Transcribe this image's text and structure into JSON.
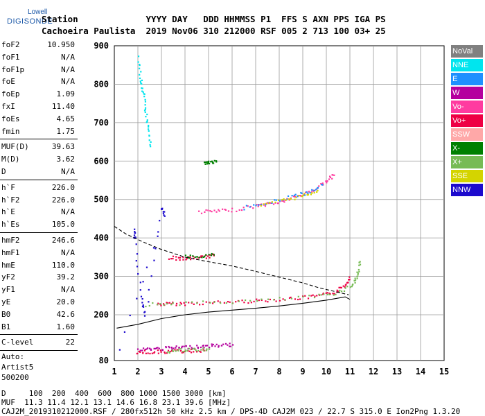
{
  "logo": {
    "line1": "Lowell",
    "line2": "DIGISONDE"
  },
  "header": {
    "row1": "Station             YYYY DAY   DDD HHMMSS P1  FFS S AXN PPS IGA PS",
    "row2": "Cachoeira Paulista  2019 Nov06 310 212000 RSF 005 2 713 100 03+ 25"
  },
  "params": {
    "group1": [
      {
        "name": "foF2",
        "value": "10.950"
      },
      {
        "name": "foF1",
        "value": "N/A"
      },
      {
        "name": "foF1p",
        "value": "N/A"
      },
      {
        "name": "foE",
        "value": "N/A"
      },
      {
        "name": "foEp",
        "value": "1.09"
      },
      {
        "name": "fxI",
        "value": "11.40"
      },
      {
        "name": "foEs",
        "value": "4.65"
      },
      {
        "name": "fmin",
        "value": "1.75"
      }
    ],
    "group2": [
      {
        "name": "MUF(D)",
        "value": "39.63"
      },
      {
        "name": "M(D)",
        "value": "3.62"
      },
      {
        "name": "D",
        "value": "N/A"
      }
    ],
    "group3": [
      {
        "name": "h`F",
        "value": "226.0"
      },
      {
        "name": "h`F2",
        "value": "226.0"
      },
      {
        "name": "h`E",
        "value": "N/A"
      },
      {
        "name": "h`Es",
        "value": "105.0"
      }
    ],
    "group4": [
      {
        "name": "hmF2",
        "value": "246.6"
      },
      {
        "name": "hmF1",
        "value": "N/A"
      },
      {
        "name": "hmE",
        "value": "110.0"
      },
      {
        "name": "yF2",
        "value": "39.2"
      },
      {
        "name": "yF1",
        "value": "N/A"
      },
      {
        "name": "yE",
        "value": "20.0"
      },
      {
        "name": "B0",
        "value": "42.6"
      },
      {
        "name": "B1",
        "value": "1.60"
      }
    ],
    "group5": [
      {
        "name": "C-level",
        "value": "22"
      }
    ],
    "free": [
      "Auto:",
      "Artist5",
      "500200"
    ]
  },
  "legend": [
    {
      "label": "NoVal",
      "color": "#808080"
    },
    {
      "label": "NNE",
      "color": "#00e5ee"
    },
    {
      "label": "E",
      "color": "#1e90ff"
    },
    {
      "label": "W",
      "color": "#b5009e"
    },
    {
      "label": "Vo-",
      "color": "#ff3ba0"
    },
    {
      "label": "Vo+",
      "color": "#ee0044"
    },
    {
      "label": "SSW",
      "color": "#ffa8a8"
    },
    {
      "label": "X-",
      "color": "#008000"
    },
    {
      "label": "X+",
      "color": "#77bb55"
    },
    {
      "label": "SSE",
      "color": "#d4d400"
    },
    {
      "label": "NNW",
      "color": "#1c0acd"
    }
  ],
  "footer": {
    "line1": "D     100  200  400  600  800 1000 1500 3000 [km]",
    "line2": "MUF  11.3 11.4 12.1 13.1 14.6 16.8 23.1 39.6 [MHz]",
    "line3": "CAJ2M_2019310212000.RSF / 280fx512h 50 kHz 2.5 km / DPS-4D CAJ2M 023 / 22.7 S 315.0 E Ion2Png 1.3.20"
  },
  "chart_data": {
    "type": "scatter",
    "title": "",
    "xlabel": "",
    "ylabel": "",
    "xlim": [
      1,
      15
    ],
    "ylim": [
      80,
      900
    ],
    "y_ticks": [
      80,
      200,
      300,
      400,
      500,
      600,
      700,
      800,
      900
    ],
    "x_ticks": [
      1,
      2,
      3,
      4,
      5,
      6,
      7,
      8,
      9,
      10,
      11,
      12,
      13,
      14,
      15
    ],
    "grid": true,
    "series": [
      {
        "color": "#ee0044",
        "points": [
          [
            2.8,
            229
          ],
          [
            3.3,
            230
          ],
          [
            4,
            231
          ],
          [
            5,
            233
          ],
          [
            6,
            235
          ],
          [
            7,
            238
          ],
          [
            8,
            242
          ],
          [
            9,
            246
          ],
          [
            9.8,
            252
          ],
          [
            10.4,
            262
          ],
          [
            10.8,
            280
          ],
          [
            10.95,
            300
          ]
        ]
      },
      {
        "color": "#77bb55",
        "points": [
          [
            2.3,
            228
          ],
          [
            3.5,
            231
          ],
          [
            5.5,
            234
          ],
          [
            7.5,
            240
          ],
          [
            9.5,
            249
          ],
          [
            10.5,
            260
          ],
          [
            11.1,
            280
          ],
          [
            11.3,
            305
          ],
          [
            11.4,
            340
          ]
        ]
      },
      {
        "color": "#ff3ba0",
        "points": [
          [
            4.6,
            470
          ],
          [
            5.3,
            471
          ],
          [
            6,
            474
          ],
          [
            7,
            485
          ],
          [
            7.5,
            490
          ],
          [
            8,
            495
          ],
          [
            8.5,
            505
          ],
          [
            9,
            515
          ],
          [
            9.5,
            528
          ],
          [
            10,
            550
          ],
          [
            10.3,
            565
          ]
        ]
      },
      {
        "color": "#1e90ff",
        "points": [
          [
            6.5,
            480
          ],
          [
            7.5,
            492
          ],
          [
            8.5,
            510
          ],
          [
            9.2,
            520
          ],
          [
            9.8,
            540
          ]
        ]
      },
      {
        "color": "#d4d400",
        "points": [
          [
            7.2,
            485
          ],
          [
            8.2,
            500
          ],
          [
            9,
            512
          ],
          [
            9.6,
            525
          ]
        ]
      },
      {
        "color": "#ee0044",
        "points": [
          [
            3.3,
            350
          ],
          [
            3.8,
            348
          ],
          [
            4.3,
            349
          ],
          [
            4.8,
            352
          ],
          [
            5.2,
            356
          ]
        ]
      },
      {
        "color": "#008000",
        "points": [
          [
            4.0,
            353
          ],
          [
            4.6,
            355
          ],
          [
            5.2,
            358
          ]
        ]
      },
      {
        "color": "#b5009e",
        "points": [
          [
            2.0,
            110
          ],
          [
            2.5,
            112
          ],
          [
            3.0,
            113
          ],
          [
            3.5,
            115
          ],
          [
            4.0,
            117
          ],
          [
            4.5,
            118
          ],
          [
            5.0,
            120
          ],
          [
            5.5,
            122
          ],
          [
            6.0,
            123
          ]
        ]
      },
      {
        "color": "#ee0044",
        "points": [
          [
            1.9,
            103
          ],
          [
            2.4,
            104
          ],
          [
            3,
            105
          ],
          [
            3.6,
            106
          ],
          [
            4.2,
            107
          ],
          [
            4.8,
            108
          ]
        ]
      },
      {
        "color": "#77bb55",
        "points": [
          [
            3.2,
            106
          ],
          [
            3.8,
            108
          ],
          [
            4.4,
            110
          ],
          [
            5,
            112
          ]
        ]
      },
      {
        "color": "#008000",
        "points": [
          [
            4.8,
            596
          ],
          [
            5.0,
            598
          ],
          [
            5.3,
            600
          ]
        ]
      },
      {
        "color": "#00e5ee",
        "points": [
          [
            2.0,
            870
          ],
          [
            2.1,
            810
          ],
          [
            2.2,
            780
          ],
          [
            2.3,
            730
          ],
          [
            2.4,
            690
          ],
          [
            2.5,
            640
          ]
        ]
      },
      {
        "color": "#1c0acd",
        "points": [
          [
            1.8,
            420
          ],
          [
            1.85,
            400
          ],
          [
            2.1,
            250
          ],
          [
            2.3,
            200
          ],
          [
            3.0,
            480
          ],
          [
            3.1,
            460
          ],
          [
            1.2,
            110
          ]
        ]
      }
    ],
    "curves": [
      {
        "style": "solid",
        "points": [
          [
            1.1,
            165
          ],
          [
            2,
            175
          ],
          [
            3,
            190
          ],
          [
            4,
            200
          ],
          [
            5,
            207
          ],
          [
            6,
            212
          ],
          [
            7,
            217
          ],
          [
            8,
            223
          ],
          [
            9,
            230
          ],
          [
            10,
            238
          ],
          [
            10.8,
            246.6
          ],
          [
            11,
            240
          ]
        ]
      },
      {
        "style": "dashed",
        "points": [
          [
            1.0,
            430
          ],
          [
            1.5,
            410
          ],
          [
            2.2,
            390
          ],
          [
            3,
            370
          ],
          [
            4,
            350
          ],
          [
            5,
            338
          ],
          [
            6,
            327
          ],
          [
            7,
            313
          ],
          [
            8,
            298
          ],
          [
            9,
            283
          ],
          [
            9.7,
            270
          ],
          [
            10.4,
            260
          ],
          [
            10.95,
            252
          ]
        ]
      }
    ]
  }
}
